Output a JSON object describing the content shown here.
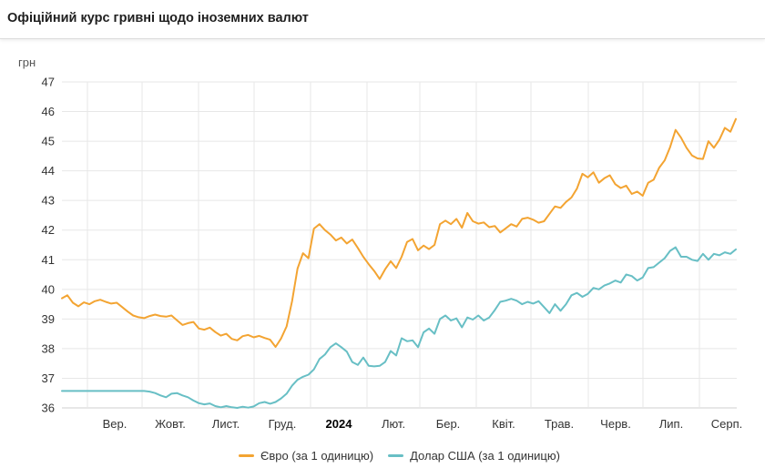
{
  "header": {
    "title": "Офіційний курс гривні щодо іноземних валют"
  },
  "colors": {
    "euro_line": "#f3a432",
    "dollar_line": "#68bfc5",
    "grid": "#e7e7e7",
    "axis_baseline": "#cfcfcf",
    "tick_text": "#333333",
    "bold_tick_text": "#000000",
    "unit_text": "#555555"
  },
  "chart_data": {
    "type": "line",
    "title": "Офіційний курс гривні щодо іноземних валют",
    "ylabel": "грн",
    "ylim": [
      36,
      47
    ],
    "yticks": [
      47,
      46,
      45,
      44,
      43,
      42,
      41,
      40,
      39,
      38,
      37,
      36
    ],
    "x_tick_labels": [
      "Вер.",
      "Жовт.",
      "Лист.",
      "Груд.",
      "2024",
      "Лют.",
      "Бер.",
      "Квіт.",
      "Трав.",
      "Черв.",
      "Лип.",
      "Серп."
    ],
    "bold_x_tick_index": 4,
    "grid": true,
    "legend_position": "bottom",
    "sample_interval_days": 3,
    "series": [
      {
        "name": "Євро (за 1 одиницю)",
        "color": "#f3a432",
        "values": [
          39.7,
          39.8,
          39.55,
          39.43,
          39.56,
          39.5,
          39.6,
          39.65,
          39.58,
          39.52,
          39.55,
          39.4,
          39.25,
          39.12,
          39.06,
          39.03,
          39.1,
          39.15,
          39.1,
          39.08,
          39.12,
          38.96,
          38.8,
          38.86,
          38.9,
          38.68,
          38.64,
          38.71,
          38.56,
          38.44,
          38.5,
          38.33,
          38.28,
          38.42,
          38.46,
          38.38,
          38.43,
          38.36,
          38.3,
          38.06,
          38.34,
          38.75,
          39.6,
          40.7,
          41.22,
          41.05,
          42.05,
          42.2,
          42.0,
          41.85,
          41.65,
          41.75,
          41.55,
          41.68,
          41.4,
          41.1,
          40.85,
          40.62,
          40.35,
          40.68,
          40.95,
          40.72,
          41.1,
          41.6,
          41.7,
          41.32,
          41.48,
          41.36,
          41.5,
          42.2,
          42.32,
          42.2,
          42.38,
          42.08,
          42.58,
          42.3,
          42.22,
          42.26,
          42.1,
          42.14,
          41.92,
          42.06,
          42.2,
          42.12,
          42.38,
          42.42,
          42.35,
          42.25,
          42.3,
          42.55,
          42.8,
          42.75,
          42.95,
          43.1,
          43.4,
          43.9,
          43.78,
          43.95,
          43.6,
          43.75,
          43.85,
          43.55,
          43.42,
          43.5,
          43.22,
          43.3,
          43.16,
          43.6,
          43.7,
          44.1,
          44.35,
          44.8,
          45.38,
          45.12,
          44.78,
          44.52,
          44.42,
          44.4,
          45.0,
          44.78,
          45.05,
          45.45,
          45.32,
          45.75
        ]
      },
      {
        "name": "Долар США (за 1 одиницю)",
        "color": "#68bfc5",
        "values": [
          36.57,
          36.57,
          36.57,
          36.57,
          36.57,
          36.57,
          36.57,
          36.57,
          36.57,
          36.57,
          36.57,
          36.57,
          36.57,
          36.57,
          36.57,
          36.57,
          36.55,
          36.5,
          36.42,
          36.36,
          36.48,
          36.5,
          36.42,
          36.36,
          36.25,
          36.16,
          36.12,
          36.15,
          36.06,
          36.02,
          36.06,
          36.02,
          36.0,
          36.04,
          36.01,
          36.05,
          36.16,
          36.2,
          36.14,
          36.2,
          36.32,
          36.48,
          36.75,
          36.95,
          37.05,
          37.12,
          37.3,
          37.65,
          37.8,
          38.05,
          38.18,
          38.05,
          37.9,
          37.55,
          37.45,
          37.7,
          37.42,
          37.4,
          37.42,
          37.55,
          37.92,
          37.77,
          38.35,
          38.25,
          38.28,
          38.05,
          38.55,
          38.68,
          38.5,
          39.0,
          39.12,
          38.95,
          39.02,
          38.72,
          39.05,
          38.98,
          39.12,
          38.95,
          39.05,
          39.3,
          39.58,
          39.62,
          39.68,
          39.62,
          39.5,
          39.58,
          39.52,
          39.6,
          39.4,
          39.2,
          39.5,
          39.28,
          39.5,
          39.8,
          39.88,
          39.75,
          39.85,
          40.05,
          40.0,
          40.13,
          40.2,
          40.3,
          40.23,
          40.5,
          40.45,
          40.3,
          40.4,
          40.72,
          40.75,
          40.9,
          41.05,
          41.3,
          41.42,
          41.1,
          41.1,
          41.0,
          40.96,
          41.2,
          41.0,
          41.2,
          41.15,
          41.25,
          41.2,
          41.35
        ]
      }
    ]
  }
}
